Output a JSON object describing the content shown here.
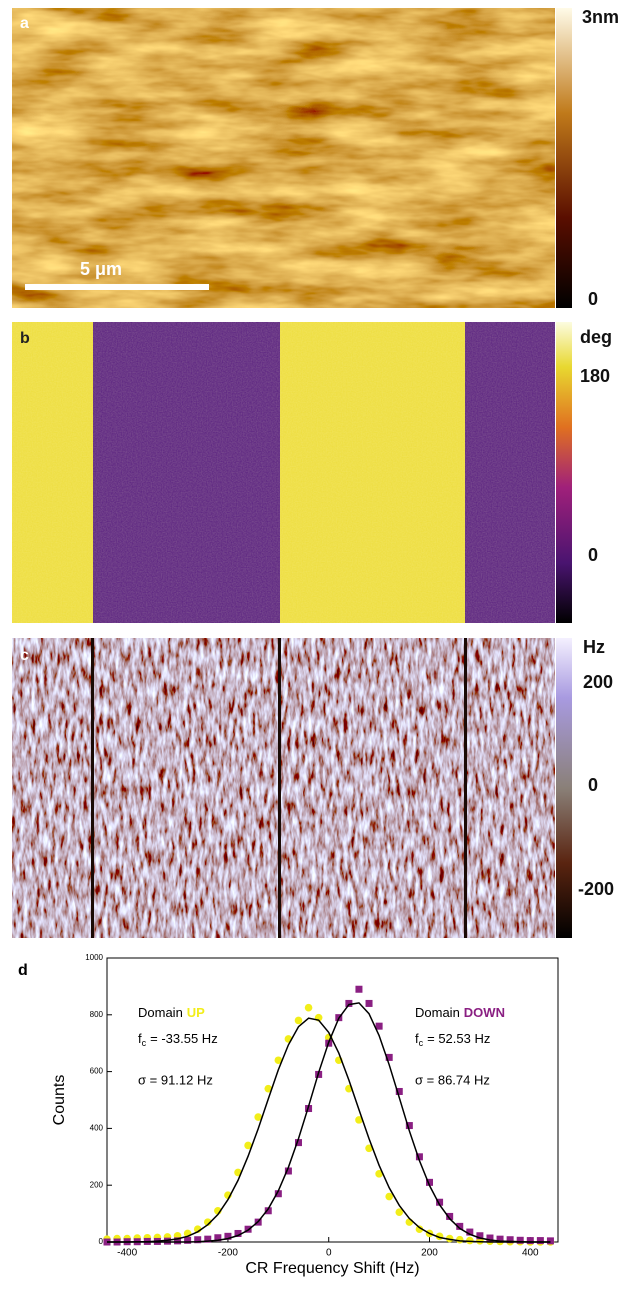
{
  "panels": [
    {
      "label": "a",
      "colorbar": {
        "labels": [
          "3nm",
          "0"
        ]
      },
      "scale_bar": "5 μm"
    },
    {
      "label": "b",
      "colorbar": {
        "labels": [
          "deg",
          "180",
          "0"
        ]
      }
    },
    {
      "label": "c",
      "colorbar": {
        "labels": [
          "Hz",
          "200",
          "0",
          "-200"
        ]
      }
    }
  ],
  "chart_data": {
    "type": "scatter",
    "panel_label": "d",
    "x_label": "CR Frequency Shift (Hz)",
    "y_label": "Counts",
    "xlim": [
      -440,
      455
    ],
    "ylim": [
      0,
      1000
    ],
    "xticks": [
      -400,
      -200,
      0,
      200,
      400
    ],
    "yticks": [
      0,
      200,
      400,
      600,
      800,
      1000
    ],
    "fit_color": "#000000",
    "x": [
      -440,
      -420,
      -400,
      -380,
      -360,
      -340,
      -320,
      -300,
      -280,
      -260,
      -240,
      -220,
      -200,
      -180,
      -160,
      -140,
      -120,
      -100,
      -80,
      -60,
      -40,
      -20,
      0,
      20,
      40,
      60,
      80,
      100,
      120,
      140,
      160,
      180,
      200,
      220,
      240,
      260,
      280,
      300,
      320,
      340,
      360,
      380,
      400,
      420,
      440
    ],
    "series": [
      {
        "name": "UP",
        "color": "#f2ee1a",
        "marker": "circle",
        "values": [
          10,
          12,
          12,
          14,
          15,
          16,
          18,
          22,
          30,
          45,
          70,
          110,
          165,
          245,
          340,
          440,
          540,
          640,
          715,
          780,
          825,
          790,
          720,
          640,
          540,
          430,
          330,
          240,
          160,
          105,
          70,
          45,
          30,
          20,
          12,
          8,
          5,
          4,
          3,
          2,
          1,
          1,
          0,
          0,
          0
        ],
        "fit": [
          0,
          0,
          0,
          1,
          1,
          3,
          6,
          11,
          20,
          36,
          61,
          97,
          149,
          217,
          302,
          399,
          504,
          606,
          694,
          758,
          788,
          781,
          738,
          665,
          570,
          466,
          364,
          270,
          191,
          129,
          83,
          51,
          30,
          16,
          9,
          4,
          2,
          1,
          0,
          0,
          0,
          0,
          0,
          0,
          0
        ],
        "annotation": {
          "prefix": "Domain",
          "f": "f",
          "sub": "c",
          "center": "= -33.55 Hz",
          "sigma": "σ = 91.12 Hz"
        }
      },
      {
        "name": "DOWN",
        "color": "#8a1f82",
        "marker": "square",
        "values": [
          0,
          0,
          1,
          1,
          2,
          2,
          3,
          4,
          6,
          8,
          10,
          15,
          20,
          30,
          45,
          70,
          110,
          170,
          250,
          350,
          470,
          590,
          700,
          790,
          840,
          890,
          840,
          760,
          650,
          530,
          410,
          300,
          210,
          140,
          90,
          55,
          35,
          22,
          14,
          10,
          8,
          6,
          5,
          5,
          4
        ],
        "fit": [
          0,
          0,
          0,
          0,
          0,
          0,
          0,
          0,
          0,
          1,
          3,
          6,
          12,
          23,
          42,
          72,
          117,
          180,
          263,
          364,
          478,
          596,
          703,
          788,
          836,
          842,
          804,
          727,
          624,
          508,
          392,
          287,
          199,
          131,
          82,
          48,
          27,
          14,
          7,
          3,
          2,
          1,
          0,
          0,
          0
        ],
        "annotation": {
          "prefix": "Domain",
          "f": "f",
          "sub": "c",
          "center": "= 52.53 Hz",
          "sigma": "σ = 86.74 Hz"
        }
      }
    ]
  }
}
